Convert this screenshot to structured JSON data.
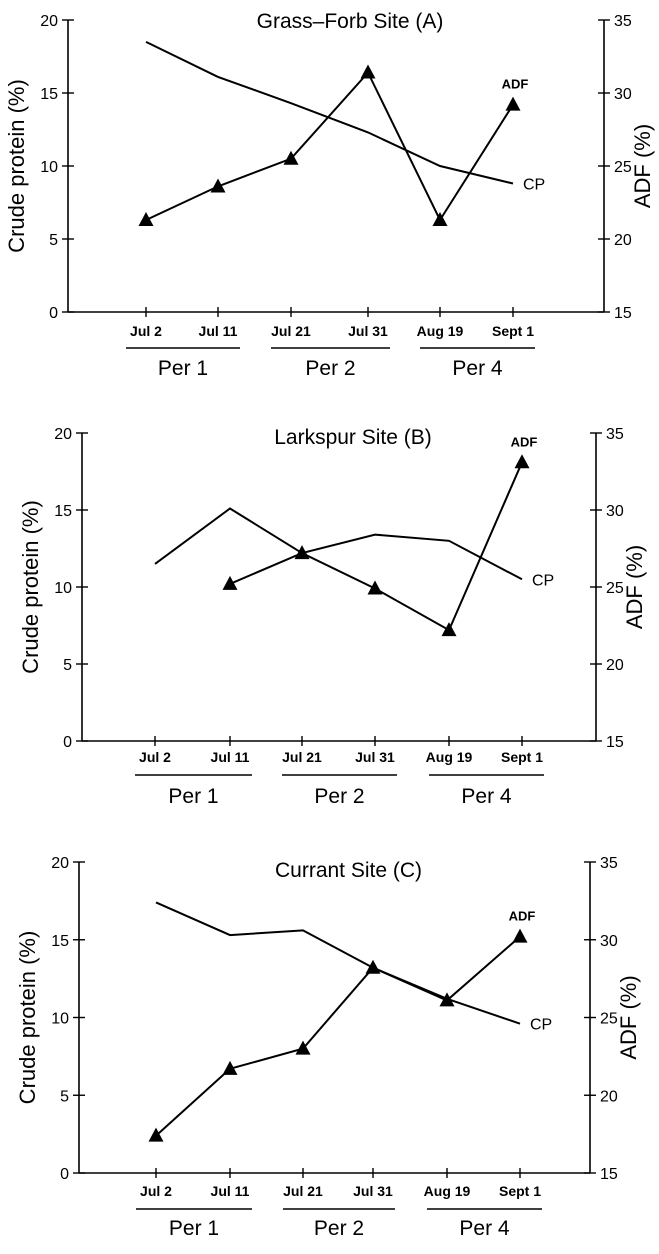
{
  "chart_data": [
    {
      "type": "line",
      "title": "Grass–Forb Site (A)",
      "ylabel": "Crude protein (%)",
      "y2label": "ADF (%)",
      "categories": [
        "Jul 2",
        "Jul 11",
        "Jul 21",
        "Jul 31",
        "Aug 19",
        "Sept 1"
      ],
      "ylim": [
        0,
        20
      ],
      "y2lim": [
        15,
        35
      ],
      "yticks": [
        "0",
        "5",
        "10",
        "15",
        "20"
      ],
      "y2ticks": [
        "15",
        "20",
        "25",
        "30",
        "35"
      ],
      "periods": [
        {
          "label": "Per 1",
          "from": 0,
          "to": 1
        },
        {
          "label": "Per 2",
          "from": 2,
          "to": 3
        },
        {
          "label": "Per 4",
          "from": 4,
          "to": 5
        }
      ],
      "series": [
        {
          "name": "CP",
          "axis": "left",
          "marker": "none",
          "values": [
            18.5,
            16.1,
            14.3,
            12.3,
            10.0,
            8.8
          ]
        },
        {
          "name": "ADF",
          "axis": "right",
          "marker": "triangle",
          "values": [
            21.3,
            23.6,
            25.5,
            31.4,
            21.3,
            29.2
          ]
        }
      ]
    },
    {
      "type": "line",
      "title": "Larkspur Site (B)",
      "ylabel": "Crude protein (%)",
      "y2label": "ADF (%)",
      "categories": [
        "Jul 2",
        "Jul 11",
        "Jul 21",
        "Jul 31",
        "Aug 19",
        "Sept 1"
      ],
      "ylim": [
        0,
        20
      ],
      "y2lim": [
        15,
        35
      ],
      "yticks": [
        "0",
        "5",
        "10",
        "15",
        "20"
      ],
      "y2ticks": [
        "15",
        "20",
        "25",
        "30",
        "35"
      ],
      "periods": [
        {
          "label": "Per 1",
          "from": 0,
          "to": 1
        },
        {
          "label": "Per 2",
          "from": 2,
          "to": 3
        },
        {
          "label": "Per 4",
          "from": 4,
          "to": 5
        }
      ],
      "series": [
        {
          "name": "CP",
          "axis": "left",
          "marker": "none",
          "values": [
            11.5,
            15.1,
            12.2,
            13.4,
            13.0,
            10.5
          ]
        },
        {
          "name": "ADF",
          "axis": "right",
          "marker": "triangle",
          "values": [
            null,
            25.2,
            27.2,
            24.9,
            22.2,
            33.1
          ]
        }
      ]
    },
    {
      "type": "line",
      "title": "Currant Site (C)",
      "ylabel": "Crude protein (%)",
      "y2label": "ADF (%)",
      "categories": [
        "Jul 2",
        "Jul 11",
        "Jul 21",
        "Jul 31",
        "Aug 19",
        "Sept 1"
      ],
      "ylim": [
        0,
        20
      ],
      "y2lim": [
        15,
        35
      ],
      "yticks": [
        "0",
        "5",
        "10",
        "15",
        "20"
      ],
      "y2ticks": [
        "15",
        "20",
        "25",
        "30",
        "35"
      ],
      "periods": [
        {
          "label": "Per 1",
          "from": 0,
          "to": 1
        },
        {
          "label": "Per 2",
          "from": 2,
          "to": 3
        },
        {
          "label": "Per 4",
          "from": 4,
          "to": 5
        }
      ],
      "series": [
        {
          "name": "CP",
          "axis": "left",
          "marker": "none",
          "values": [
            17.4,
            15.3,
            15.6,
            13.2,
            11.2,
            9.6
          ]
        },
        {
          "name": "ADF",
          "axis": "right",
          "marker": "triangle",
          "values": [
            17.4,
            21.7,
            23.0,
            28.2,
            26.1,
            30.2
          ]
        }
      ]
    }
  ]
}
